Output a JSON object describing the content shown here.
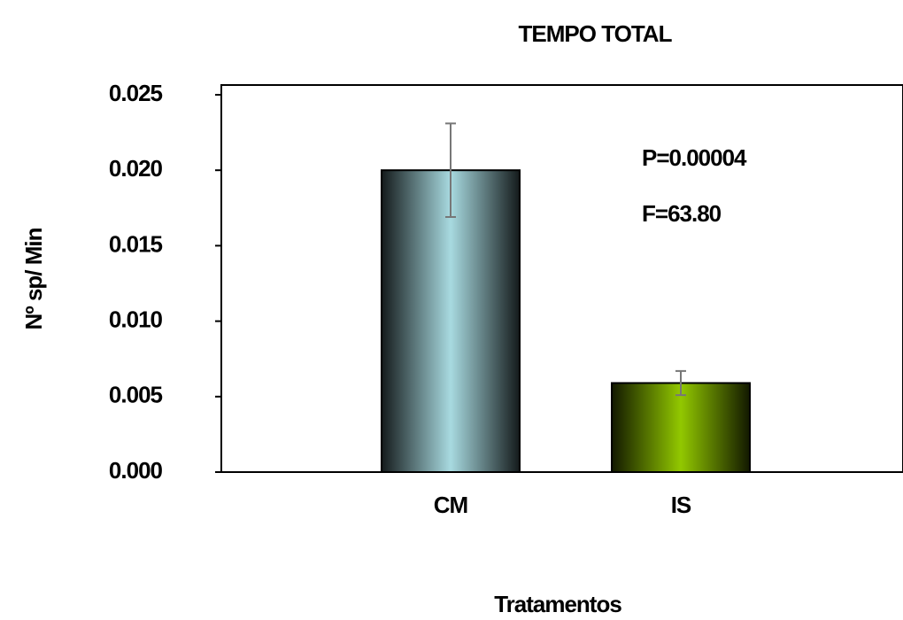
{
  "chart_data": {
    "type": "bar",
    "title": "TEMPO TOTAL",
    "x_label": "Tratamentos",
    "y_label": "Nº sp/ Min",
    "categories": [
      "CM",
      "IS"
    ],
    "values": [
      0.02,
      0.0059
    ],
    "errors": [
      0.0031,
      0.0008
    ],
    "colors": [
      "#a8dae0",
      "#92c800"
    ],
    "ylim": [
      0,
      0.025
    ],
    "yticks": [
      {
        "value": 0,
        "label": "0.000"
      },
      {
        "value": 0.005,
        "label": "0.005"
      },
      {
        "value": 0.01,
        "label": "0.010"
      },
      {
        "value": 0.015,
        "label": "0.015"
      },
      {
        "value": 0.02,
        "label": "0.020"
      },
      {
        "value": 0.025,
        "label": "0.025"
      }
    ],
    "annotations": [
      "P=0.00004",
      "F=63.80"
    ]
  }
}
